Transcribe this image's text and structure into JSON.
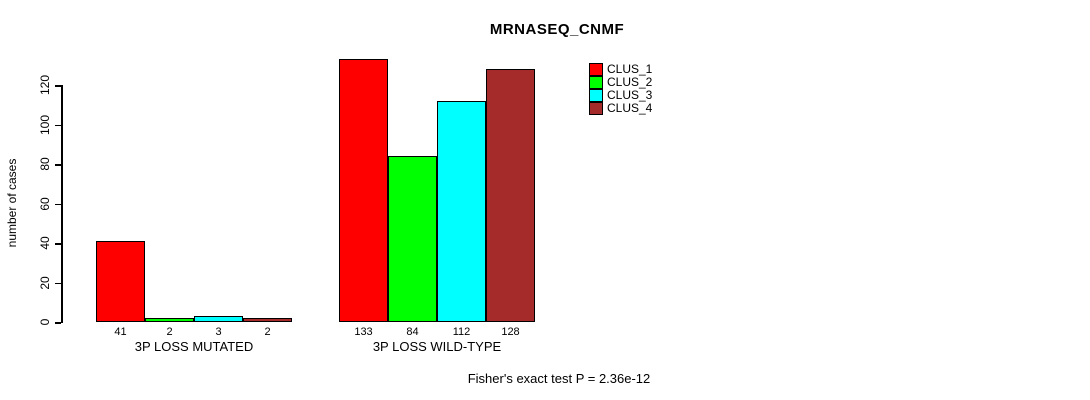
{
  "chart_data": {
    "type": "bar",
    "title": "MRNASEQ_CNMF",
    "ylabel": "number of cases",
    "xlabel": "",
    "categories": [
      "3P LOSS MUTATED",
      "3P LOSS WILD-TYPE"
    ],
    "series": [
      {
        "name": "CLUS_1",
        "color": "#FF0000",
        "values": [
          41,
          133
        ]
      },
      {
        "name": "CLUS_2",
        "color": "#00FF00",
        "values": [
          2,
          84
        ]
      },
      {
        "name": "CLUS_3",
        "color": "#00FFFF",
        "values": [
          3,
          112
        ]
      },
      {
        "name": "CLUS_4",
        "color": "#A52A2A",
        "values": [
          2,
          128
        ]
      }
    ],
    "bar_value_labels": [
      [
        41,
        2,
        3,
        2
      ],
      [
        133,
        84,
        112,
        128
      ]
    ],
    "yticks": [
      0,
      20,
      40,
      60,
      80,
      100,
      120
    ],
    "ylim": [
      0,
      133
    ],
    "grid": false,
    "legend_position": "top-right",
    "annotation": "Fisher's exact test P = 2.36e-12"
  }
}
